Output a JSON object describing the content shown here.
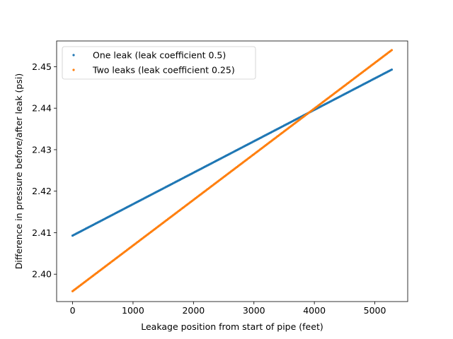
{
  "chart_data": {
    "type": "scatter",
    "title": "",
    "xlabel": "Leakage position from start of pipe (feet)",
    "ylabel": "Difference in pressure before/after leak (psi)",
    "xlim": [
      -264,
      5544
    ],
    "ylim": [
      2.3934,
      2.4562
    ],
    "xticks": [
      0,
      1000,
      2000,
      3000,
      4000,
      5000
    ],
    "xtick_labels": [
      "0",
      "1000",
      "2000",
      "3000",
      "4000",
      "5000"
    ],
    "yticks": [
      2.4,
      2.41,
      2.42,
      2.43,
      2.44,
      2.45
    ],
    "ytick_labels": [
      "2.40",
      "2.41",
      "2.42",
      "2.43",
      "2.44",
      "2.45"
    ],
    "grid": false,
    "legend_position": "upper-left",
    "series": [
      {
        "name": "One leak (leak coefficient 0.5)",
        "color": "#1f77b4",
        "marker": "point",
        "x_range": [
          0,
          5280
        ],
        "x_step": 20,
        "y_start": 2.4093,
        "y_end": 2.4493
      },
      {
        "name": "Two leaks (leak coefficient 0.25)",
        "color": "#ff7f0e",
        "marker": "point",
        "x_range": [
          0,
          5280
        ],
        "x_step": 20,
        "y_start": 2.3959,
        "y_end": 2.454
      }
    ]
  }
}
